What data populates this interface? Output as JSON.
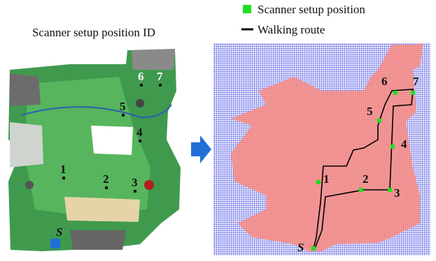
{
  "caption": "Scanner setup position ID",
  "legend": {
    "marker": "Scanner setup position",
    "route": "Walking route"
  },
  "scan_labels": [
    "1",
    "2",
    "3",
    "4",
    "5",
    "6",
    "7",
    "S"
  ],
  "grid_labels": [
    "1",
    "2",
    "3",
    "4",
    "5",
    "6",
    "7",
    "S"
  ]
}
